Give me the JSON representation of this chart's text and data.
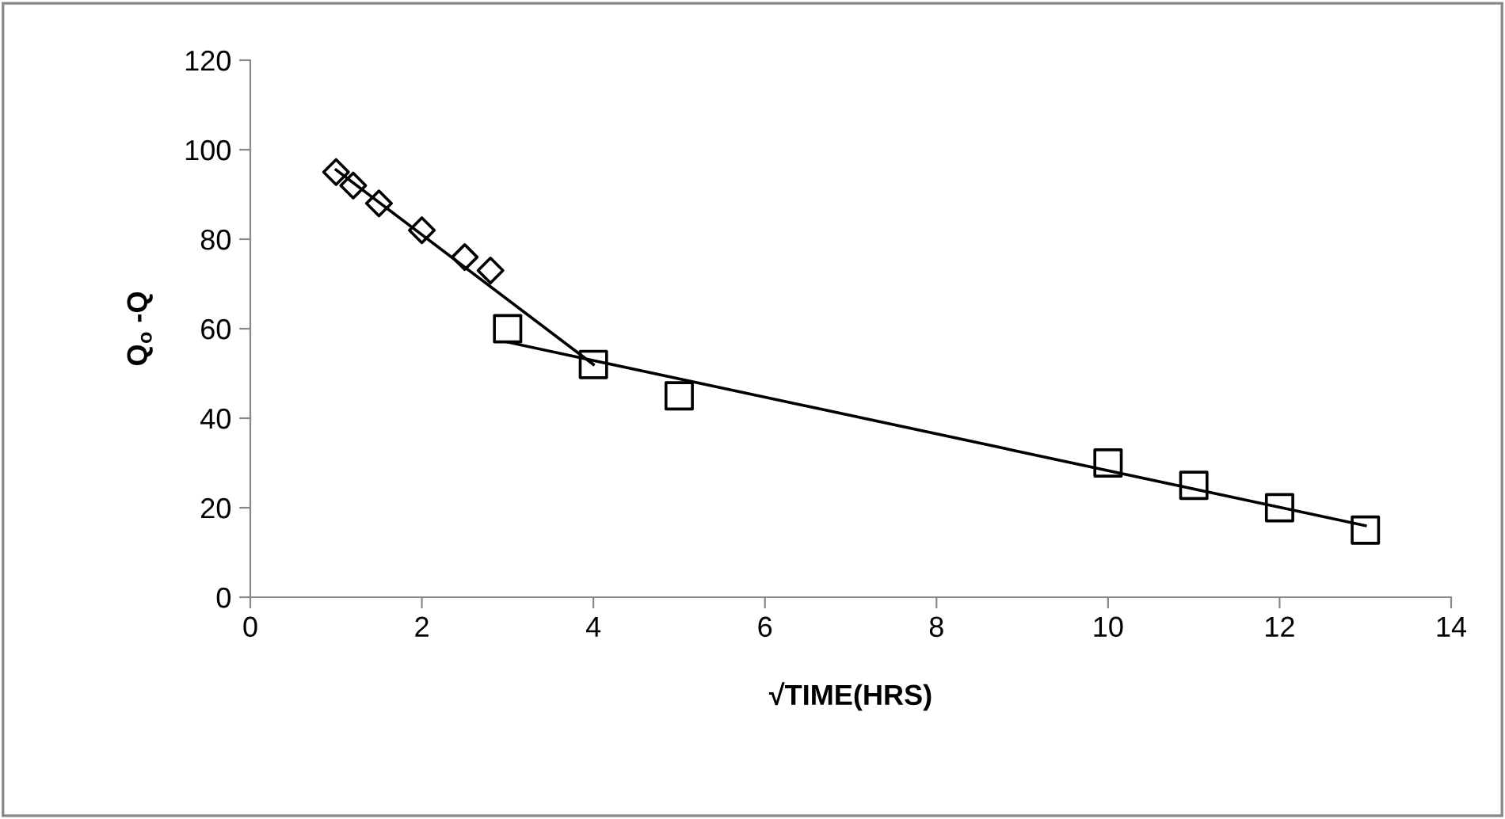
{
  "chart_data": {
    "type": "scatter",
    "xlabel": "√TIME(HRS)",
    "ylabel": "Q$_{o}$ -Q",
    "xlim": [
      0,
      14
    ],
    "xticks": [
      0,
      2,
      4,
      6,
      8,
      10,
      12,
      14
    ],
    "ylim": [
      0,
      120
    ],
    "yticks": [
      0,
      20,
      40,
      60,
      80,
      100,
      120
    ],
    "grid": false,
    "legend": false,
    "series": [
      {
        "marker": "diamond",
        "color": "#000000",
        "x": [
          1,
          1.2,
          1.5,
          2,
          2.5,
          2.8
        ],
        "values": [
          95,
          92,
          88,
          82,
          76,
          73
        ]
      },
      {
        "marker": "square",
        "color": "#000000",
        "x": [
          3,
          4,
          5,
          10,
          11,
          12,
          13
        ],
        "values": [
          60,
          52,
          45,
          30,
          25,
          20,
          15
        ]
      },
      {
        "type": "line",
        "marker": "none",
        "color": "#000000",
        "x": [
          1,
          4
        ],
        "values": [
          95.5,
          52
        ]
      },
      {
        "type": "line",
        "marker": "none",
        "color": "#000000",
        "x": [
          3,
          13
        ],
        "values": [
          57,
          16
        ]
      }
    ]
  }
}
